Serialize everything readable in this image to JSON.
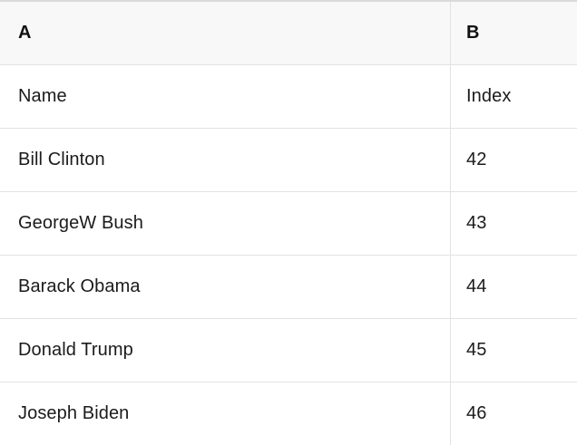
{
  "table": {
    "header": {
      "col_a": "A",
      "col_b": "B"
    },
    "rows": [
      {
        "name": "Name",
        "index": "Index"
      },
      {
        "name": "Bill Clinton",
        "index": "42"
      },
      {
        "name": "GeorgeW Bush",
        "index": "43"
      },
      {
        "name": "Barack Obama",
        "index": "44"
      },
      {
        "name": "Donald Trump",
        "index": "45"
      },
      {
        "name": "Joseph Biden",
        "index": "46"
      }
    ]
  },
  "colors": {
    "header_background": "#f8f8f8",
    "row_background": "#ffffff",
    "border": "#e2e2e2",
    "top_border": "#dadada",
    "text": "#1b1b1b"
  }
}
